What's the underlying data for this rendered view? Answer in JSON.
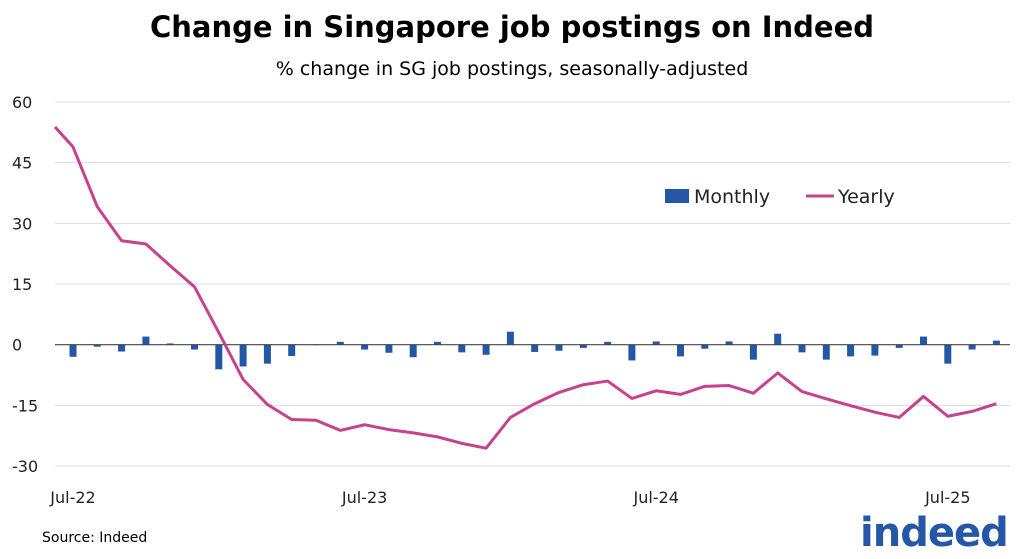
{
  "chart_data": {
    "type": "bar+line",
    "title": "Change in Singapore job postings on Indeed",
    "subtitle": "% change in SG job postings, seasonally-adjusted",
    "xlabel": "",
    "ylabel": "",
    "ylim": [
      -30,
      60
    ],
    "yticks": [
      "60",
      "45",
      "30",
      "15",
      "0",
      "-15",
      "-30"
    ],
    "xtick_labels": [
      "Jul-22",
      "Jul-23",
      "Jul-24",
      "Jul-25"
    ],
    "grid": true,
    "legend_position": "top-right",
    "x_start": "Jul-22",
    "series": [
      {
        "name": "Monthly",
        "type": "bar",
        "color": "#2557a7",
        "values": [
          -3.0,
          -0.5,
          -1.7,
          2.0,
          0.3,
          -1.2,
          -6.1,
          -5.4,
          -4.7,
          -2.8,
          0.0,
          0.7,
          -1.2,
          -2.0,
          -3.1,
          0.7,
          -1.9,
          -2.5,
          3.2,
          -1.8,
          -1.5,
          -0.8,
          0.7,
          -3.9,
          0.8,
          -2.9,
          -1.0,
          0.8,
          -3.7,
          2.7,
          -1.9,
          -3.7,
          -2.9,
          -2.7,
          -0.8,
          2.0,
          -4.7,
          -1.2,
          1.0
        ]
      },
      {
        "name": "Yearly",
        "type": "line",
        "color": "#c7428d",
        "values": [
          48.9,
          34.1,
          25.7,
          24.9,
          19.5,
          14.3,
          3.0,
          -8.6,
          -14.8,
          -18.5,
          -18.7,
          -21.2,
          -19.8,
          -21.0,
          -21.8,
          -22.8,
          -24.4,
          -25.6,
          -18.0,
          -14.6,
          -11.8,
          -9.9,
          -9.0,
          -13.3,
          -11.4,
          -12.3,
          -10.3,
          -10.1,
          -12.0,
          -7.0,
          -11.6,
          -13.4,
          -15.1,
          -16.7,
          -18.0,
          -12.8,
          -17.7,
          -16.5,
          -14.6
        ]
      }
    ]
  },
  "source": "Source: Indeed",
  "logo_text": "indeed"
}
